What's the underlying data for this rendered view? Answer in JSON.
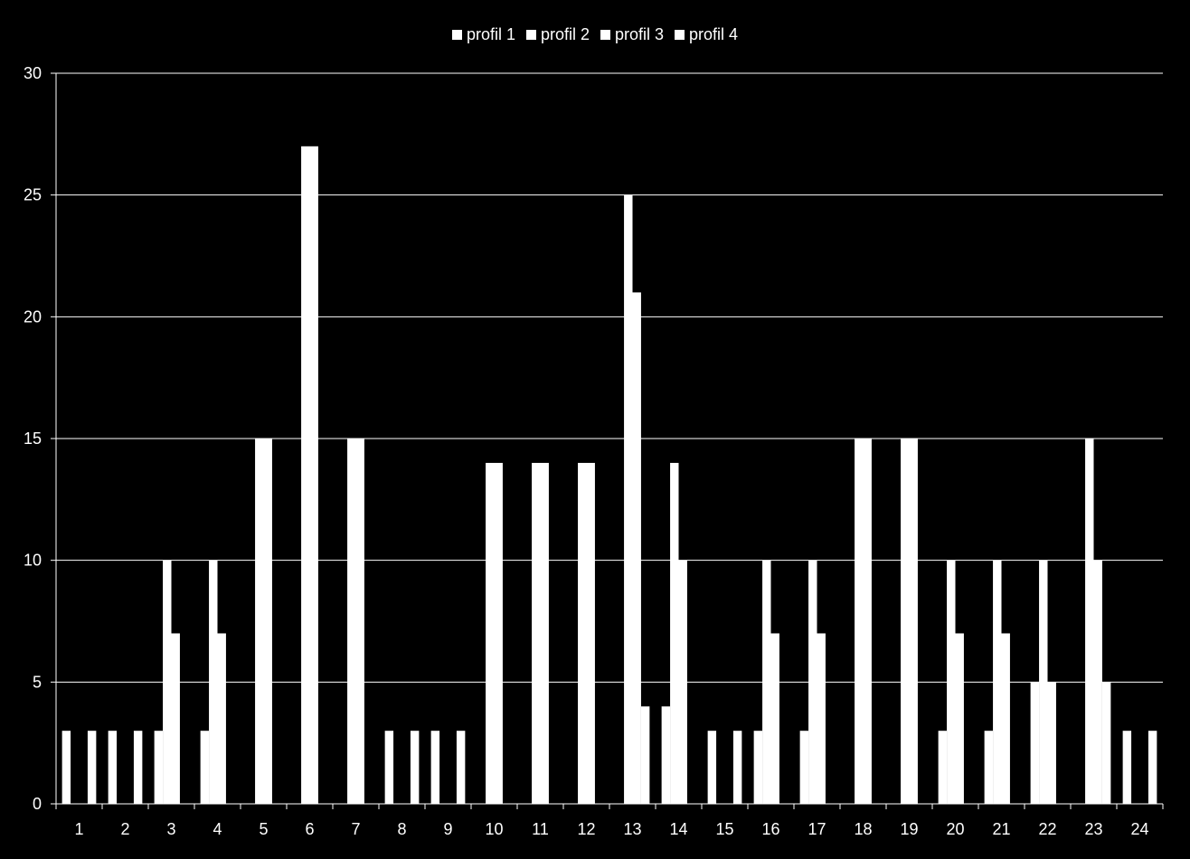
{
  "colors": {
    "background": "#000000",
    "bars": "#ffffff",
    "grid": "#ffffff",
    "text": "#ffffff"
  },
  "chart_data": {
    "type": "bar",
    "title": "",
    "xlabel": "",
    "ylabel": "",
    "ylim": [
      0,
      30
    ],
    "yticks": [
      0,
      5,
      10,
      15,
      20,
      25,
      30
    ],
    "grid": true,
    "legend_position": "top",
    "categories": [
      "1",
      "2",
      "3",
      "4",
      "5",
      "6",
      "7",
      "8",
      "9",
      "10",
      "11",
      "12",
      "13",
      "14",
      "15",
      "16",
      "17",
      "18",
      "19",
      "20",
      "21",
      "22",
      "23",
      "24"
    ],
    "series": [
      {
        "name": "profil 1",
        "values": [
          3,
          3,
          3,
          3,
          0,
          0,
          0,
          3,
          3,
          0,
          0,
          0,
          0,
          4,
          3,
          3,
          3,
          0,
          0,
          3,
          3,
          5,
          0,
          3
        ]
      },
      {
        "name": "profil 2",
        "values": [
          0,
          0,
          10,
          10,
          15,
          27,
          15,
          0,
          0,
          14,
          14,
          14,
          25,
          14,
          0,
          10,
          10,
          15,
          15,
          10,
          10,
          10,
          15,
          0
        ]
      },
      {
        "name": "profil 3",
        "values": [
          0,
          0,
          7,
          7,
          15,
          27,
          15,
          0,
          0,
          14,
          14,
          14,
          21,
          10,
          0,
          7,
          7,
          15,
          15,
          7,
          7,
          5,
          10,
          0
        ]
      },
      {
        "name": "profil 4",
        "values": [
          3,
          3,
          0,
          0,
          0,
          0,
          0,
          3,
          3,
          0,
          0,
          0,
          4,
          0,
          3,
          0,
          0,
          0,
          0,
          0,
          0,
          0,
          5,
          3
        ]
      }
    ]
  }
}
